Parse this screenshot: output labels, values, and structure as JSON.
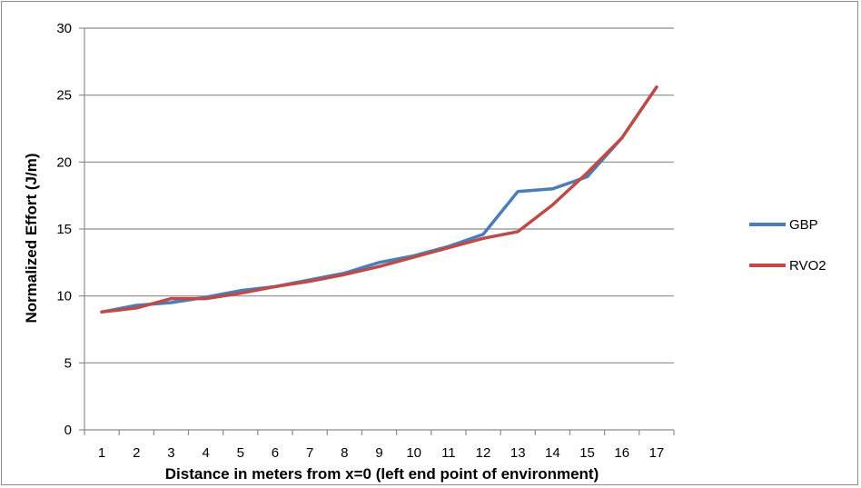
{
  "chart_data": {
    "type": "line",
    "title": "",
    "xlabel": "Distance in meters from x=0 (left end point of environment)",
    "ylabel": "Normalized Effort (J/m)",
    "categories": [
      "1",
      "2",
      "3",
      "4",
      "5",
      "6",
      "7",
      "8",
      "9",
      "10",
      "11",
      "12",
      "13",
      "14",
      "15",
      "16",
      "17"
    ],
    "ylim": [
      0,
      30
    ],
    "yticks": [
      "0",
      "5",
      "10",
      "15",
      "20",
      "25",
      "30"
    ],
    "grid": "horizontal",
    "legend_position": "right",
    "series": [
      {
        "name": "GBP",
        "color": "#4a7ebb",
        "values": [
          8.8,
          9.3,
          9.5,
          9.9,
          10.4,
          10.7,
          11.2,
          11.7,
          12.5,
          13.0,
          13.7,
          14.6,
          17.8,
          18.0,
          18.9,
          21.8,
          25.6
        ]
      },
      {
        "name": "RVO2",
        "color": "#be4b48",
        "values": [
          8.8,
          9.1,
          9.8,
          9.8,
          10.2,
          10.7,
          11.1,
          11.6,
          12.2,
          12.9,
          13.6,
          14.3,
          14.8,
          16.8,
          19.2,
          21.8,
          25.6
        ]
      }
    ]
  }
}
